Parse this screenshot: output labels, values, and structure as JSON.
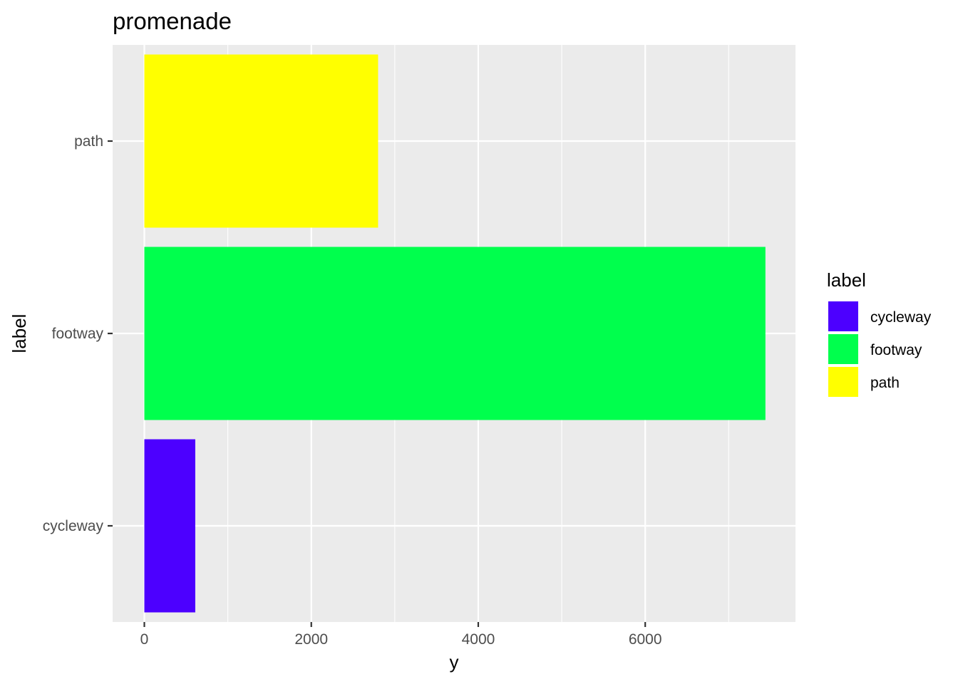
{
  "chart_data": {
    "type": "bar",
    "orientation": "horizontal",
    "title": "promenade",
    "xlabel": "y",
    "ylabel": "label",
    "categories": [
      "cycleway",
      "footway",
      "path"
    ],
    "values": [
      610,
      7440,
      2800
    ],
    "colors": [
      "#4C00FF",
      "#00FF4D",
      "#FFFF00"
    ],
    "xlim": [
      -380,
      7800
    ],
    "xticks": [
      0,
      2000,
      4000,
      6000
    ],
    "xtick_labels": [
      "0",
      "2000",
      "4000",
      "6000"
    ],
    "grid": true,
    "panel_background": "#EBEBEB",
    "legend": {
      "title": "label",
      "position": "right",
      "entries": [
        "cycleway",
        "footway",
        "path"
      ]
    }
  }
}
